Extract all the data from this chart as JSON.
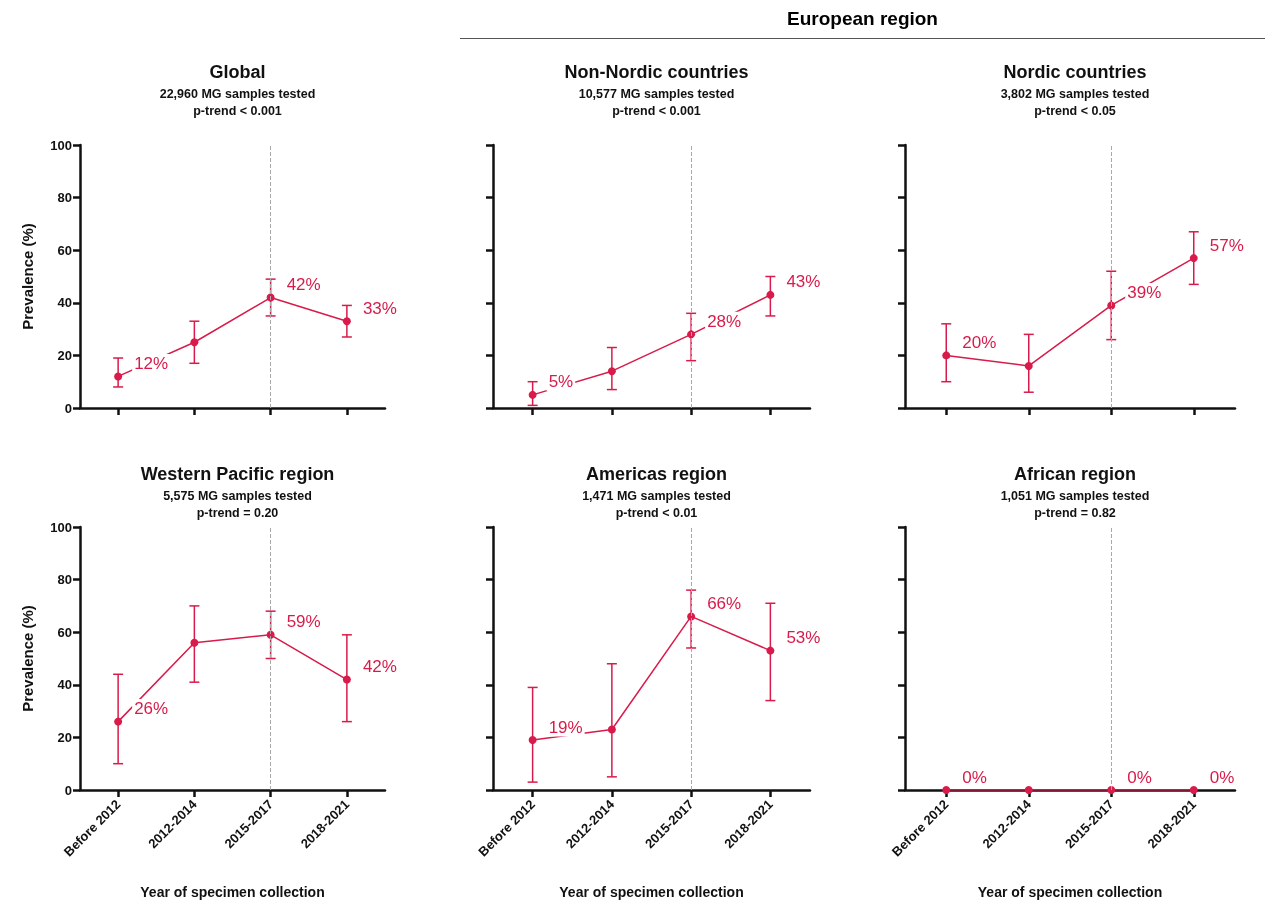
{
  "chart_data": [
    {
      "type": "line",
      "title": "Global",
      "subtitle": "22,960 MG samples tested\np-trend < 0.001",
      "ylabel": "Prevalence (%)",
      "categories": [
        "Before 2012",
        "2012-2014",
        "2015-2017",
        "2018-2021"
      ],
      "color": "#d81b4a",
      "marker": "circle",
      "line_style": "solid",
      "values": [
        12,
        25,
        42,
        33
      ],
      "errors": [
        [
          8,
          19
        ],
        [
          17,
          33
        ],
        [
          35,
          49
        ],
        [
          27,
          39
        ]
      ],
      "value_labels": [
        "12%",
        null,
        "42%",
        "33%"
      ],
      "ylim": [
        0,
        100
      ],
      "yticks": [
        0,
        20,
        40,
        60,
        80,
        100
      ],
      "tick_labels": "y",
      "ref_lines": [
        {
          "axis": "x",
          "value": "2015-2017",
          "color": "#aaaaaa",
          "line_style": "dashed"
        }
      ]
    },
    {
      "type": "line",
      "title": "Non-Nordic countries",
      "subtitle": "10,577 MG samples tested\np-trend < 0.001",
      "annotations": [
        "European region"
      ],
      "categories": [
        "Before 2012",
        "2012-2014",
        "2015-2017",
        "2018-2021"
      ],
      "color": "#d81b4a",
      "marker": "circle",
      "line_style": "solid",
      "values": [
        5,
        14,
        28,
        43
      ],
      "errors": [
        [
          1,
          10
        ],
        [
          7,
          23
        ],
        [
          18,
          36
        ],
        [
          35,
          50
        ]
      ],
      "value_labels": [
        "5%",
        null,
        "28%",
        "43%"
      ],
      "ylim": [
        0,
        100
      ],
      "yticks": [
        0,
        20,
        40,
        60,
        80,
        100
      ],
      "tick_labels": false,
      "ref_lines": [
        {
          "axis": "x",
          "value": "2015-2017",
          "color": "#aaaaaa",
          "line_style": "dashed"
        }
      ]
    },
    {
      "type": "line",
      "title": "Nordic countries",
      "subtitle": "3,802 MG samples tested\np-trend < 0.05",
      "categories": [
        "Before 2012",
        "2012-2014",
        "2015-2017",
        "2018-2021"
      ],
      "color": "#d81b4a",
      "marker": "circle",
      "line_style": "solid",
      "values": [
        20,
        16,
        39,
        57
      ],
      "errors": [
        [
          10,
          32
        ],
        [
          6,
          28
        ],
        [
          26,
          52
        ],
        [
          47,
          67
        ]
      ],
      "value_labels": [
        "20%",
        null,
        "39%",
        "57%"
      ],
      "ylim": [
        0,
        100
      ],
      "yticks": [
        0,
        20,
        40,
        60,
        80,
        100
      ],
      "tick_labels": false,
      "ref_lines": [
        {
          "axis": "x",
          "value": "2015-2017",
          "color": "#aaaaaa",
          "line_style": "dashed"
        }
      ]
    },
    {
      "type": "line",
      "title": "Western Pacific region",
      "subtitle": "5,575 MG samples tested\np-trend = 0.20",
      "ylabel": "Prevalence (%)",
      "xlabel": "Year of specimen collection",
      "categories": [
        "Before 2012",
        "2012-2014",
        "2015-2017",
        "2018-2021"
      ],
      "color": "#d81b4a",
      "marker": "circle",
      "line_style": "solid",
      "values": [
        26,
        56,
        59,
        42
      ],
      "errors": [
        [
          10,
          44
        ],
        [
          41,
          70
        ],
        [
          50,
          68
        ],
        [
          26,
          59
        ]
      ],
      "value_labels": [
        "26%",
        null,
        "59%",
        "42%"
      ],
      "ylim": [
        0,
        100
      ],
      "yticks": [
        0,
        20,
        40,
        60,
        80,
        100
      ],
      "ref_lines": [
        {
          "axis": "x",
          "value": "2015-2017",
          "color": "#aaaaaa",
          "line_style": "dashed"
        }
      ]
    },
    {
      "type": "line",
      "title": "Americas region",
      "subtitle": "1,471 MG samples tested\np-trend < 0.01",
      "xlabel": "Year of specimen collection",
      "categories": [
        "Before 2012",
        "2012-2014",
        "2015-2017",
        "2018-2021"
      ],
      "color": "#d81b4a",
      "marker": "circle",
      "line_style": "solid",
      "values": [
        19,
        23,
        66,
        53
      ],
      "errors": [
        [
          3,
          39
        ],
        [
          5,
          48
        ],
        [
          54,
          76
        ],
        [
          34,
          71
        ]
      ],
      "value_labels": [
        "19%",
        null,
        "66%",
        "53%"
      ],
      "ylim": [
        0,
        100
      ],
      "yticks": [
        0,
        20,
        40,
        60,
        80,
        100
      ],
      "tick_labels": "x",
      "ref_lines": [
        {
          "axis": "x",
          "value": "2015-2017",
          "color": "#aaaaaa",
          "line_style": "dashed"
        }
      ]
    },
    {
      "type": "line",
      "title": "African region",
      "subtitle": "1,051 MG samples tested\np-trend = 0.82",
      "xlabel": "Year of specimen collection",
      "categories": [
        "Before 2012",
        "2012-2014",
        "2015-2017",
        "2018-2021"
      ],
      "color": "#d81b4a",
      "marker": "circle",
      "line_style": "solid",
      "values": [
        0,
        0,
        0,
        0
      ],
      "value_labels": [
        "0%",
        null,
        "0%",
        "0%"
      ],
      "ylim": [
        0,
        100
      ],
      "yticks": [
        0,
        20,
        40,
        60,
        80,
        100
      ],
      "tick_labels": "x",
      "ref_lines": [
        {
          "axis": "x",
          "value": "2015-2017",
          "color": "#aaaaaa",
          "line_style": "dashed"
        }
      ]
    }
  ]
}
